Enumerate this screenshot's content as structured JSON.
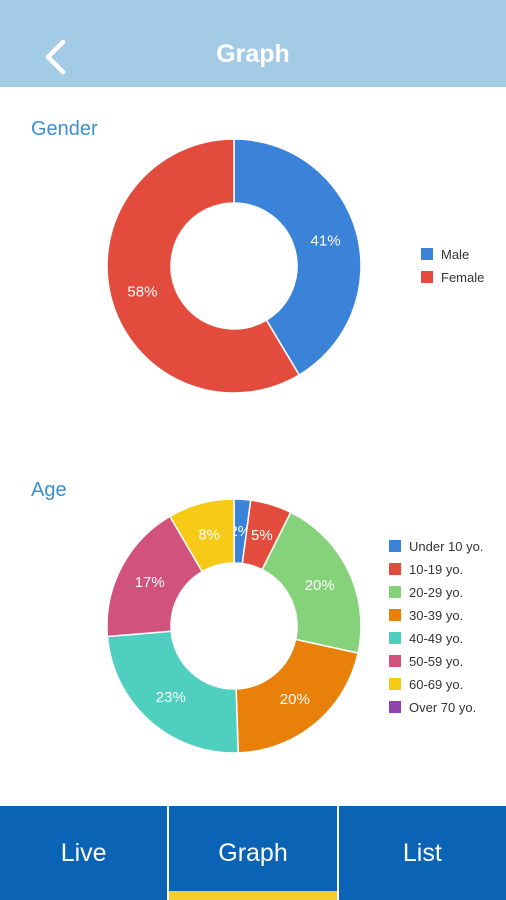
{
  "header": {
    "title": "Graph",
    "back_icon": "chevron-left-icon"
  },
  "colors": {
    "header_bg": "#a3cbe6",
    "tab_bg": "#0a63b5",
    "tab_indicator": "#f6cd2e",
    "section_title": "#3b8fd0"
  },
  "sections": {
    "gender_title": "Gender",
    "age_title": "Age"
  },
  "chart_data": [
    {
      "type": "pie",
      "title": "Gender",
      "donut": true,
      "legend_position": "right",
      "series": [
        {
          "name": "Male",
          "value": 41,
          "label": "41%",
          "color": "#3b82d9"
        },
        {
          "name": "Female",
          "value": 58,
          "label": "58%",
          "color": "#e34c3d"
        }
      ]
    },
    {
      "type": "pie",
      "title": "Age",
      "donut": true,
      "legend_position": "right",
      "series": [
        {
          "name": "Under 10 yo.",
          "value": 2,
          "label": "2%",
          "color": "#3b82d9"
        },
        {
          "name": "10-19 yo.",
          "value": 5,
          "label": "5%",
          "color": "#e34c3d"
        },
        {
          "name": "20-29 yo.",
          "value": 20,
          "label": "20%",
          "color": "#86d27a"
        },
        {
          "name": "30-39 yo.",
          "value": 20,
          "label": "20%",
          "color": "#e98009"
        },
        {
          "name": "40-49 yo.",
          "value": 23,
          "label": "23%",
          "color": "#4fcfc0"
        },
        {
          "name": "50-59 yo.",
          "value": 17,
          "label": "17%",
          "color": "#d2527e"
        },
        {
          "name": "60-69 yo.",
          "value": 8,
          "label": "8%",
          "color": "#f6ca15"
        },
        {
          "name": "Over 70 yo.",
          "value": 0,
          "label": "",
          "color": "#8e44ad"
        }
      ]
    }
  ],
  "tabs": [
    {
      "label": "Live",
      "active": false
    },
    {
      "label": "Graph",
      "active": true
    },
    {
      "label": "List",
      "active": false
    }
  ]
}
